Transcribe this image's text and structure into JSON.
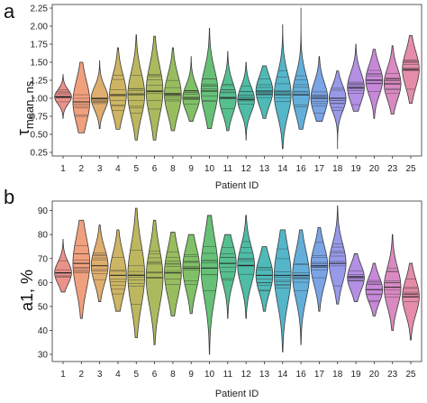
{
  "chart_data": [
    {
      "type": "violin",
      "panel_label": "a",
      "xlabel": "Patient ID",
      "ylabel_main": "τ",
      "ylabel_sub": "mean, ns",
      "ylim": [
        0.2,
        2.3
      ],
      "yticks": [
        "0.25",
        "0.50",
        "0.75",
        "1.00",
        "1.25",
        "1.50",
        "1.75",
        "2.00",
        "2.25"
      ],
      "categories": [
        "1",
        "2",
        "3",
        "4",
        "5",
        "6",
        "8",
        "9",
        "10",
        "11",
        "12",
        "13",
        "14",
        "16",
        "17",
        "18",
        "19",
        "20",
        "23",
        "25"
      ],
      "colors": [
        "#e9867e",
        "#f09670",
        "#dba55e",
        "#c9ad52",
        "#b6b04e",
        "#a3b24d",
        "#8db64e",
        "#72b957",
        "#55ba68",
        "#44b883",
        "#3bb59c",
        "#3cb2b0",
        "#42aec4",
        "#52a6d6",
        "#6c9ae2",
        "#8d8ee6",
        "#ab84e0",
        "#c27bd5",
        "#d57dba",
        "#e1809e"
      ],
      "series": [
        {
          "name": "1",
          "min": 0.72,
          "max": 1.33,
          "median": 1.02,
          "q1": 0.97,
          "q3": 1.08
        },
        {
          "name": "2",
          "min": 0.52,
          "max": 1.5,
          "median": 0.95,
          "q1": 0.8,
          "q3": 1.12
        },
        {
          "name": "3",
          "min": 0.58,
          "max": 1.52,
          "median": 1.0,
          "q1": 0.92,
          "q3": 1.1
        },
        {
          "name": "4",
          "min": 0.57,
          "max": 1.7,
          "median": 1.05,
          "q1": 0.9,
          "q3": 1.2
        },
        {
          "name": "5",
          "min": 0.42,
          "max": 1.88,
          "median": 1.05,
          "q1": 0.88,
          "q3": 1.22
        },
        {
          "name": "6",
          "min": 0.42,
          "max": 1.86,
          "median": 1.1,
          "q1": 0.92,
          "q3": 1.3
        },
        {
          "name": "8",
          "min": 0.55,
          "max": 1.7,
          "median": 1.05,
          "q1": 0.92,
          "q3": 1.22
        },
        {
          "name": "9",
          "min": 0.68,
          "max": 1.58,
          "median": 1.0,
          "q1": 0.92,
          "q3": 1.12
        },
        {
          "name": "10",
          "min": 0.58,
          "max": 1.97,
          "median": 1.1,
          "q1": 0.95,
          "q3": 1.28
        },
        {
          "name": "11",
          "min": 0.55,
          "max": 1.65,
          "median": 1.0,
          "q1": 0.88,
          "q3": 1.12
        },
        {
          "name": "12",
          "min": 0.42,
          "max": 1.5,
          "median": 0.98,
          "q1": 0.88,
          "q3": 1.08
        },
        {
          "name": "13",
          "min": 0.72,
          "max": 1.45,
          "median": 1.1,
          "q1": 1.0,
          "q3": 1.22
        },
        {
          "name": "14",
          "min": 0.3,
          "max": 2.02,
          "median": 1.05,
          "q1": 0.9,
          "q3": 1.22
        },
        {
          "name": "16",
          "min": 0.57,
          "max": 2.25,
          "median": 1.05,
          "q1": 0.92,
          "q3": 1.22
        },
        {
          "name": "17",
          "min": 0.68,
          "max": 1.58,
          "median": 1.0,
          "q1": 0.88,
          "q3": 1.12
        },
        {
          "name": "18",
          "min": 0.3,
          "max": 1.38,
          "median": 1.0,
          "q1": 0.88,
          "q3": 1.08
        },
        {
          "name": "19",
          "min": 0.82,
          "max": 1.75,
          "median": 1.15,
          "q1": 1.05,
          "q3": 1.28
        },
        {
          "name": "20",
          "min": 0.72,
          "max": 1.68,
          "median": 1.25,
          "q1": 1.12,
          "q3": 1.35
        },
        {
          "name": "23",
          "min": 0.78,
          "max": 1.73,
          "median": 1.2,
          "q1": 1.08,
          "q3": 1.32
        },
        {
          "name": "25",
          "min": 0.93,
          "max": 1.87,
          "median": 1.4,
          "q1": 1.25,
          "q3": 1.52
        }
      ]
    },
    {
      "type": "violin",
      "panel_label": "b",
      "xlabel": "Patient ID",
      "ylabel_main": "a1, %",
      "ylim": [
        27,
        94
      ],
      "yticks": [
        "30",
        "40",
        "50",
        "60",
        "70",
        "80",
        "90"
      ],
      "categories": [
        "1",
        "2",
        "3",
        "4",
        "5",
        "6",
        "8",
        "9",
        "10",
        "11",
        "12",
        "13",
        "14",
        "16",
        "17",
        "18",
        "19",
        "20",
        "23",
        "25"
      ],
      "colors": [
        "#e9867e",
        "#f09670",
        "#dba55e",
        "#c9ad52",
        "#b6b04e",
        "#a3b24d",
        "#8db64e",
        "#72b957",
        "#55ba68",
        "#44b883",
        "#3bb59c",
        "#3cb2b0",
        "#42aec4",
        "#52a6d6",
        "#6c9ae2",
        "#8d8ee6",
        "#ab84e0",
        "#c27bd5",
        "#d57dba",
        "#e1809e"
      ],
      "series": [
        {
          "name": "1",
          "min": 56,
          "max": 78,
          "median": 64,
          "q1": 62,
          "q3": 67
        },
        {
          "name": "2",
          "min": 45,
          "max": 86,
          "median": 68,
          "q1": 62,
          "q3": 74
        },
        {
          "name": "3",
          "min": 52,
          "max": 84,
          "median": 67,
          "q1": 63,
          "q3": 71
        },
        {
          "name": "4",
          "min": 48,
          "max": 82,
          "median": 63,
          "q1": 58,
          "q3": 68
        },
        {
          "name": "5",
          "min": 37,
          "max": 91,
          "median": 63,
          "q1": 56,
          "q3": 70
        },
        {
          "name": "6",
          "min": 34,
          "max": 86,
          "median": 62,
          "q1": 55,
          "q3": 68
        },
        {
          "name": "8",
          "min": 46,
          "max": 81,
          "median": 64,
          "q1": 58,
          "q3": 69
        },
        {
          "name": "9",
          "min": 47,
          "max": 80,
          "median": 66,
          "q1": 61,
          "q3": 71
        },
        {
          "name": "10",
          "min": 30,
          "max": 88,
          "median": 66,
          "q1": 58,
          "q3": 72
        },
        {
          "name": "11",
          "min": 45,
          "max": 80,
          "median": 68,
          "q1": 63,
          "q3": 72
        },
        {
          "name": "12",
          "min": 45,
          "max": 88,
          "median": 67,
          "q1": 63,
          "q3": 72
        },
        {
          "name": "13",
          "min": 48,
          "max": 75,
          "median": 63,
          "q1": 59,
          "q3": 67
        },
        {
          "name": "14",
          "min": 31,
          "max": 82,
          "median": 63,
          "q1": 56,
          "q3": 69
        },
        {
          "name": "16",
          "min": 34,
          "max": 82,
          "median": 63,
          "q1": 57,
          "q3": 68
        },
        {
          "name": "17",
          "min": 48,
          "max": 83,
          "median": 67,
          "q1": 63,
          "q3": 72
        },
        {
          "name": "18",
          "min": 51,
          "max": 92,
          "median": 68,
          "q1": 64,
          "q3": 73
        },
        {
          "name": "19",
          "min": 52,
          "max": 72,
          "median": 62,
          "q1": 59,
          "q3": 65
        },
        {
          "name": "20",
          "min": 46,
          "max": 68,
          "median": 57,
          "q1": 54,
          "q3": 60
        },
        {
          "name": "23",
          "min": 40,
          "max": 80,
          "median": 58,
          "q1": 54,
          "q3": 63
        },
        {
          "name": "25",
          "min": 36,
          "max": 68,
          "median": 54,
          "q1": 50,
          "q3": 58
        }
      ]
    }
  ]
}
